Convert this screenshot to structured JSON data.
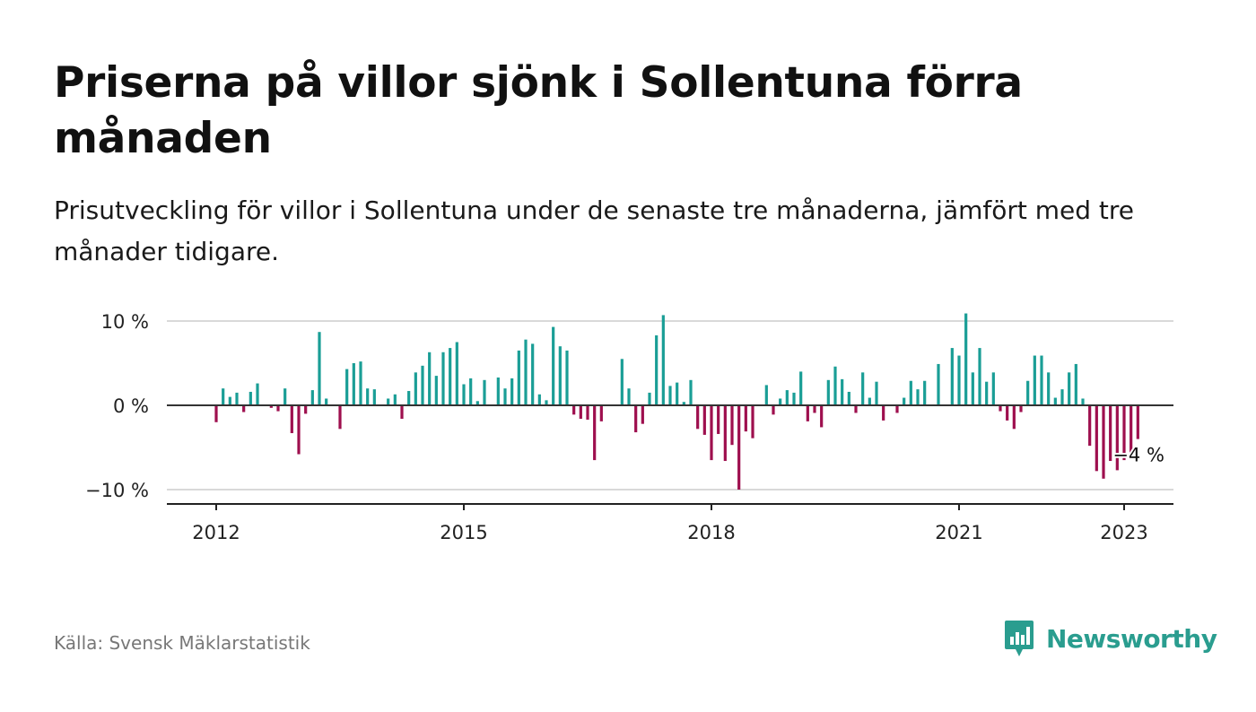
{
  "title": "Priserna på villor sjönk i Sollentuna förra månaden",
  "subtitle": "Prisutveckling för villor i Sollentuna under de senaste tre månaderna, jämfört med tre månader tidigare.",
  "source": "Källa: Svensk Mäklarstatistik",
  "brand": "Newsworthy",
  "colors": {
    "positive": "#1a9e96",
    "negative": "#9e0f4e",
    "zero_line": "#333333",
    "grid": "#d9d9d9",
    "brand": "#2a9d8f"
  },
  "chart_data": {
    "type": "bar",
    "x_start": "2012-01",
    "frequency": "monthly",
    "values": [
      -2,
      2,
      1,
      1.5,
      -0.8,
      1.6,
      2.6,
      0,
      -0.3,
      -0.7,
      2,
      -3.3,
      -5.8,
      -1,
      1.8,
      8.7,
      0.8,
      0,
      -2.8,
      4.3,
      5,
      5.2,
      2,
      1.9,
      0,
      0.8,
      1.3,
      -1.6,
      1.7,
      3.9,
      4.7,
      6.3,
      3.5,
      6.3,
      6.8,
      7.5,
      2.5,
      3.2,
      0.5,
      3,
      0,
      3.3,
      2,
      3.2,
      6.5,
      7.8,
      7.3,
      1.3,
      0.6,
      9.3,
      7,
      6.5,
      -1.1,
      -1.6,
      -1.7,
      -6.5,
      -1.9,
      0,
      0,
      5.5,
      2,
      -3.2,
      -2.2,
      1.5,
      8.3,
      10.7,
      2.3,
      2.7,
      0.4,
      3,
      -2.8,
      -3.5,
      -6.5,
      -3.4,
      -6.6,
      -4.7,
      -10,
      -3.1,
      -3.9,
      0,
      2.4,
      -1.1,
      0.8,
      1.8,
      1.5,
      4,
      -1.9,
      -0.9,
      -2.6,
      3,
      4.6,
      3.1,
      1.6,
      -0.9,
      3.9,
      0.9,
      2.8,
      -1.8,
      0,
      -0.9,
      0.9,
      2.9,
      1.9,
      2.9,
      0,
      4.9,
      0,
      6.8,
      5.9,
      10.9,
      3.9,
      6.8,
      2.8,
      3.9,
      -0.7,
      -1.8,
      -2.8,
      -0.8,
      2.9,
      5.9,
      5.9,
      3.9,
      0.9,
      1.9,
      3.9,
      4.9,
      0.8,
      -4.8,
      -7.8,
      -8.7,
      -6.6,
      -7.7,
      -6.5,
      -5.9,
      -4
    ],
    "x_ticks": [
      "2012",
      "2015",
      "2018",
      "2021",
      "2023"
    ],
    "y_ticks": [
      "10 %",
      "0 %",
      "−10 %"
    ],
    "y_tick_values": [
      10,
      0,
      -10
    ],
    "ylim": [
      -11.5,
      11.5
    ],
    "last_value_label": "−4 %",
    "ylabel": "",
    "xlabel": "",
    "grid": true
  }
}
